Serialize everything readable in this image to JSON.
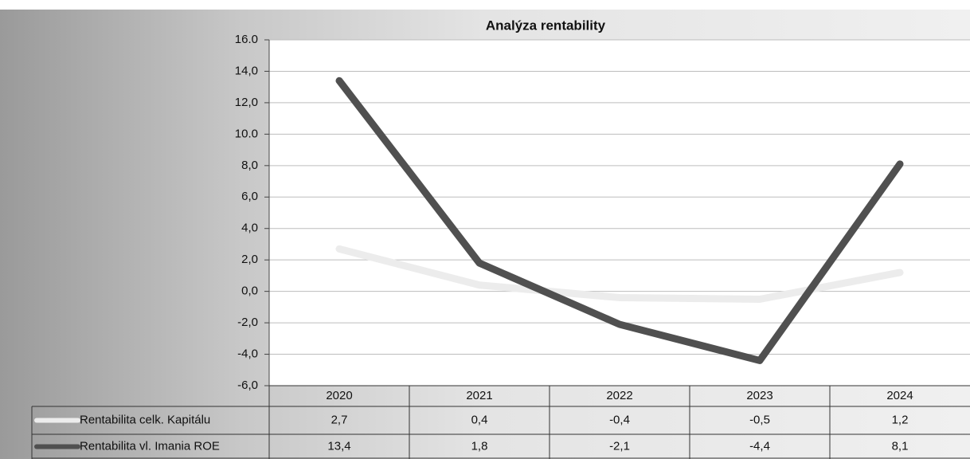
{
  "chart_data": {
    "type": "line",
    "title": "Analýza rentability",
    "categories": [
      "2020",
      "2021",
      "2022",
      "2023",
      "2024"
    ],
    "series": [
      {
        "name": "Rentabilita celk. Kapitálu",
        "color": "#ececec",
        "values": [
          2.7,
          0.4,
          -0.4,
          -0.5,
          1.2
        ],
        "value_labels": [
          "2,7",
          "0,4",
          "-0,4",
          "-0,5",
          "1,2"
        ]
      },
      {
        "name": "Rentabilita vl. Imania ROE",
        "color": "#505050",
        "values": [
          13.4,
          1.8,
          -2.1,
          -4.4,
          8.1
        ],
        "value_labels": [
          "13,4",
          "1,8",
          "-2,1",
          "-4,4",
          "8,1"
        ]
      }
    ],
    "ylim": [
      -6,
      16
    ],
    "yticks": [
      {
        "value": -6,
        "label": "-6,0"
      },
      {
        "value": -4,
        "label": "-4,0"
      },
      {
        "value": -2,
        "label": "-2,0"
      },
      {
        "value": 0,
        "label": "0,0"
      },
      {
        "value": 2,
        "label": "2,0"
      },
      {
        "value": 4,
        "label": "4,0"
      },
      {
        "value": 6,
        "label": "6,0"
      },
      {
        "value": 8,
        "label": "8,0"
      },
      {
        "value": 10,
        "label": "10.0"
      },
      {
        "value": 12,
        "label": "12,0"
      },
      {
        "value": 14,
        "label": "14,0"
      },
      {
        "value": 16,
        "label": "16.0"
      }
    ],
    "grid": true
  }
}
